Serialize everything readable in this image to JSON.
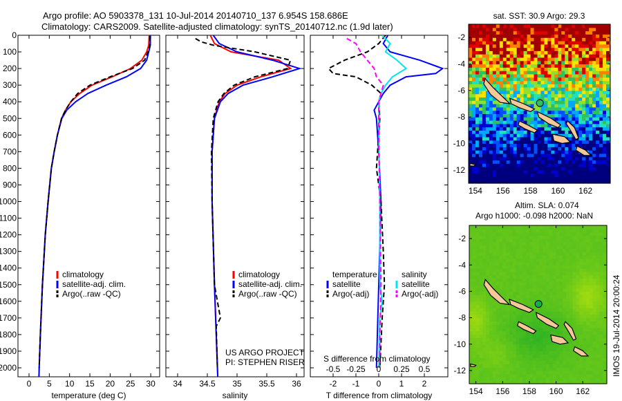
{
  "title_line1": "Argo profile: AO 5903378_131 10-Jul-2014 20140710_137 6.954S 158.686E",
  "title_line2": "Climatology: CARS2009. Satellite-adjusted climatology: synTS_20140712.nc (1.9d later)",
  "colors": {
    "climatology": "#ff0000",
    "satellite": "#0000ff",
    "argo": "#000000",
    "sal_satellite": "#00e5ee",
    "sal_argo": "#ff00ff",
    "land": "#f5c89a"
  },
  "chart_data": [
    {
      "type": "line",
      "id": "temperature",
      "xlabel": "temperature (deg C)",
      "xlim": [
        -2.5,
        32.5
      ],
      "xticks": [
        0,
        5,
        10,
        15,
        20,
        25,
        30
      ],
      "ylim": [
        0,
        2110
      ],
      "yticks": [
        0,
        100,
        200,
        300,
        400,
        500,
        600,
        700,
        800,
        900,
        1000,
        1100,
        1200,
        1300,
        1400,
        1500,
        1600,
        1700,
        1800,
        1900,
        2000
      ],
      "legend": [
        "climatology",
        "satellite-adj. clim.",
        "Argo(..raw -QC)"
      ],
      "series": [
        {
          "name": "climatology",
          "style": "solid",
          "color": "climatology",
          "points": [
            [
              0,
              29.6
            ],
            [
              60,
              29.5
            ],
            [
              100,
              29
            ],
            [
              150,
              27.8
            ],
            [
              200,
              25
            ],
            [
              250,
              20.5
            ],
            [
              300,
              15.5
            ],
            [
              350,
              12.5
            ],
            [
              400,
              10.3
            ],
            [
              450,
              9
            ],
            [
              500,
              8
            ],
            [
              600,
              7
            ],
            [
              700,
              6.2
            ],
            [
              800,
              5.5
            ],
            [
              1000,
              4.7
            ],
            [
              1200,
              4
            ],
            [
              1500,
              3.3
            ],
            [
              1800,
              2.8
            ],
            [
              2000,
              2.5
            ],
            [
              2100,
              2.4
            ]
          ]
        },
        {
          "name": "satellite-adj. clim.",
          "style": "solid",
          "color": "satellite",
          "points": [
            [
              0,
              29.9
            ],
            [
              60,
              29.9
            ],
            [
              100,
              29.5
            ],
            [
              150,
              29
            ],
            [
              200,
              27.5
            ],
            [
              250,
              24
            ],
            [
              300,
              19
            ],
            [
              350,
              14.5
            ],
            [
              400,
              11.5
            ],
            [
              450,
              9.3
            ],
            [
              500,
              8.1
            ],
            [
              600,
              7
            ],
            [
              700,
              6.2
            ],
            [
              800,
              5.5
            ],
            [
              1000,
              4.7
            ],
            [
              1200,
              4
            ],
            [
              1500,
              3.3
            ],
            [
              1800,
              2.8
            ],
            [
              2000,
              2.5
            ],
            [
              2100,
              2.4
            ]
          ]
        },
        {
          "name": "Argo(..raw -QC)",
          "style": "dashed",
          "color": "argo",
          "points": [
            [
              5,
              29.8
            ],
            [
              60,
              29.8
            ],
            [
              100,
              29.3
            ],
            [
              150,
              28.5
            ],
            [
              200,
              25.5
            ],
            [
              250,
              20
            ],
            [
              300,
              15
            ],
            [
              350,
              12
            ],
            [
              400,
              10.3
            ],
            [
              450,
              9
            ],
            [
              500,
              8
            ],
            [
              600,
              7
            ],
            [
              700,
              6.2
            ],
            [
              800,
              5.5
            ],
            [
              1000,
              4.7
            ],
            [
              1200,
              4
            ],
            [
              1500,
              3.3
            ],
            [
              1800,
              2.8
            ],
            [
              2000,
              2.5
            ]
          ]
        }
      ]
    },
    {
      "type": "line",
      "id": "salinity",
      "xlabel": "salinity",
      "xlim": [
        33.8,
        36.15
      ],
      "xticks": [
        34,
        34.5,
        35,
        35.5,
        36
      ],
      "xticklabels": [
        "34",
        "34.5",
        "35",
        "35.5",
        "36"
      ],
      "ylim": [
        0,
        2110
      ],
      "legend": [
        "climatology",
        "satellite-adj. clim.",
        "Argo(..raw -QC)"
      ],
      "annotation": [
        "US ARGO PROJECT",
        "PI: STEPHEN RISER"
      ],
      "series": [
        {
          "name": "climatology",
          "style": "solid",
          "color": "climatology",
          "points": [
            [
              0,
              34.55
            ],
            [
              50,
              34.62
            ],
            [
              100,
              34.9
            ],
            [
              150,
              35.7
            ],
            [
              200,
              35.9
            ],
            [
              250,
              35.4
            ],
            [
              300,
              35.0
            ],
            [
              350,
              34.8
            ],
            [
              400,
              34.7
            ],
            [
              500,
              34.62
            ],
            [
              700,
              34.58
            ],
            [
              1000,
              34.58
            ],
            [
              1500,
              34.62
            ],
            [
              2000,
              34.67
            ],
            [
              2100,
              34.68
            ]
          ]
        },
        {
          "name": "satellite-adj. clim.",
          "style": "solid",
          "color": "satellite",
          "points": [
            [
              0,
              34.6
            ],
            [
              50,
              34.7
            ],
            [
              100,
              35.0
            ],
            [
              150,
              35.6
            ],
            [
              200,
              36.05
            ],
            [
              250,
              35.6
            ],
            [
              300,
              35.1
            ],
            [
              350,
              34.85
            ],
            [
              400,
              34.72
            ],
            [
              500,
              34.62
            ],
            [
              700,
              34.58
            ],
            [
              1000,
              34.58
            ],
            [
              1500,
              34.62
            ],
            [
              2000,
              34.67
            ],
            [
              2100,
              34.68
            ]
          ]
        },
        {
          "name": "Argo(..raw -QC)",
          "style": "dashed",
          "color": "argo",
          "points": [
            [
              20,
              34.3
            ],
            [
              40,
              34.4
            ],
            [
              60,
              34.6
            ],
            [
              100,
              35.3
            ],
            [
              150,
              35.9
            ],
            [
              200,
              35.85
            ],
            [
              250,
              35.3
            ],
            [
              300,
              34.95
            ],
            [
              350,
              34.78
            ],
            [
              400,
              34.68
            ],
            [
              500,
              34.6
            ],
            [
              700,
              34.57
            ],
            [
              1000,
              34.58
            ],
            [
              1500,
              34.62
            ],
            [
              1700,
              34.72
            ],
            [
              1750,
              34.65
            ],
            [
              2000,
              34.67
            ]
          ]
        }
      ]
    },
    {
      "type": "line",
      "id": "difference",
      "xlabel": "T difference from climatology",
      "xlabel_top": "S difference from climatology",
      "xlim": [
        -3.1,
        3.0
      ],
      "xticks": [
        -2,
        -1,
        0,
        1,
        2
      ],
      "s_ticks": [
        -0.5,
        -0.25,
        0,
        0.25,
        0.5
      ],
      "s_ticklabels": [
        "-0.5",
        "-0.25",
        "0",
        "0.25",
        "0.5"
      ],
      "ylim": [
        0,
        2110
      ],
      "legend": {
        "temperature_title": "temperature",
        "salinity_title": "salinity",
        "items": [
          "satellite",
          "Argo(-adj)",
          "satellite",
          "Argo(-adj)"
        ]
      },
      "series": [
        {
          "name": "T satellite",
          "style": "solid",
          "color": "satellite",
          "points": [
            [
              0,
              0.4
            ],
            [
              50,
              0.2
            ],
            [
              100,
              0.5
            ],
            [
              150,
              1.8
            ],
            [
              200,
              2.8
            ],
            [
              230,
              2.5
            ],
            [
              250,
              1.2
            ],
            [
              300,
              0.5
            ],
            [
              350,
              0.2
            ],
            [
              400,
              0
            ],
            [
              450,
              -0.2
            ],
            [
              500,
              -0.1
            ],
            [
              700,
              0
            ],
            [
              1000,
              0.1
            ],
            [
              1500,
              0
            ],
            [
              2000,
              -0.1
            ]
          ]
        },
        {
          "name": "T Argo(-adj)",
          "style": "dashed",
          "color": "argo",
          "points": [
            [
              0,
              0.3
            ],
            [
              50,
              0
            ],
            [
              100,
              -0.5
            ],
            [
              150,
              -1.5
            ],
            [
              200,
              -2.2
            ],
            [
              230,
              -2
            ],
            [
              250,
              -1
            ],
            [
              300,
              -0.3
            ],
            [
              350,
              0.1
            ],
            [
              400,
              0
            ],
            [
              500,
              0.05
            ],
            [
              800,
              -0.1
            ],
            [
              1000,
              0.1
            ],
            [
              1300,
              0.2
            ],
            [
              1500,
              0.25
            ],
            [
              1700,
              0.15
            ],
            [
              2000,
              0.05
            ]
          ]
        },
        {
          "name": "S satellite",
          "style": "solid",
          "color": "sal_satellite",
          "points": [
            [
              0,
              0.15
            ],
            [
              50,
              0.5
            ],
            [
              100,
              0.3
            ],
            [
              150,
              0.8
            ],
            [
              200,
              1.2
            ],
            [
              250,
              0.6
            ],
            [
              300,
              0.3
            ],
            [
              350,
              0.1
            ],
            [
              400,
              0
            ],
            [
              600,
              0
            ],
            [
              1000,
              0.05
            ],
            [
              1500,
              0.05
            ],
            [
              1600,
              0.15
            ],
            [
              1700,
              0.05
            ],
            [
              2000,
              0
            ]
          ]
        },
        {
          "name": "S Argo(-adj)",
          "style": "dashed",
          "color": "sal_argo",
          "points": [
            [
              20,
              -1.4
            ],
            [
              50,
              -1
            ],
            [
              100,
              -0.8
            ],
            [
              150,
              -0.5
            ],
            [
              200,
              -0.2
            ],
            [
              250,
              -0.1
            ],
            [
              300,
              0.2
            ],
            [
              350,
              0.1
            ],
            [
              400,
              0
            ],
            [
              600,
              0
            ],
            [
              1000,
              0.05
            ],
            [
              1500,
              0.1
            ],
            [
              1800,
              0.05
            ],
            [
              2000,
              0.05
            ]
          ]
        }
      ]
    },
    {
      "type": "heatmap",
      "id": "sst_map",
      "title": "sat. SST: 30.9 Argo: 29.3",
      "xlim": [
        153.5,
        163.8
      ],
      "ylim": [
        -13,
        -1
      ],
      "xticks": [
        154,
        156,
        158,
        160,
        162
      ],
      "yticks": [
        -2,
        -4,
        -6,
        -8,
        -10,
        -12
      ],
      "argo_position": [
        158.686,
        -6.954
      ]
    },
    {
      "type": "heatmap",
      "id": "sla_map",
      "title": "Altim. SLA: 0.074",
      "subtitle": "Argo h1000: -0.098 h2000: NaN",
      "xlim": [
        153.5,
        163.8
      ],
      "ylim": [
        -13,
        -1
      ],
      "xticks": [
        154,
        156,
        158,
        160,
        162
      ],
      "yticks": [
        -2,
        -4,
        -6,
        -8,
        -10,
        -12
      ],
      "argo_position": [
        158.686,
        -6.954
      ],
      "side_label": "IMOS 19-Jul-2014 20:00:24"
    }
  ]
}
